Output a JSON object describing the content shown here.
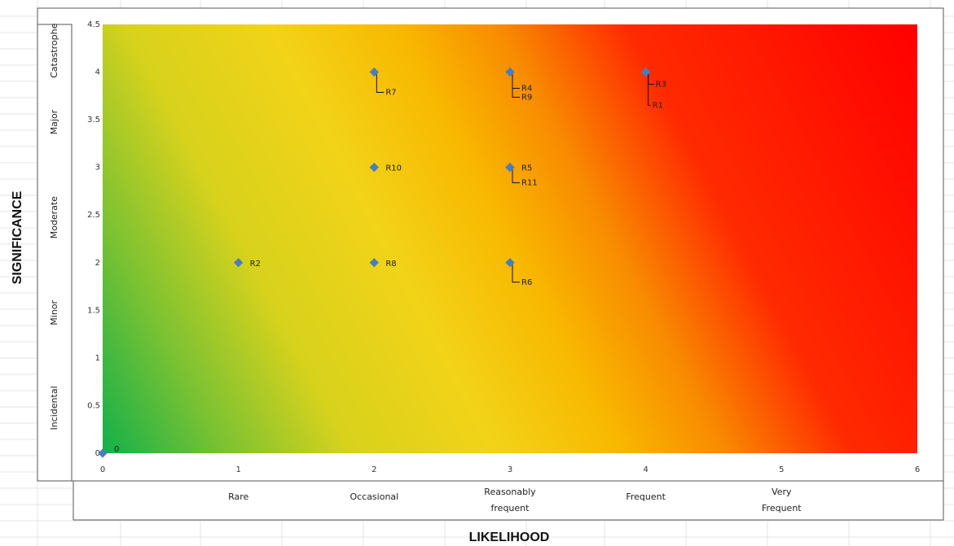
{
  "chart_data": {
    "type": "scatter",
    "xlabel": "LIKELIHOOD",
    "ylabel": "SIGNIFICANCE",
    "xlim": [
      0,
      6
    ],
    "ylim": [
      0,
      4.5
    ],
    "x_ticks": [
      "0",
      "1",
      "2",
      "3",
      "4",
      "5",
      "6"
    ],
    "y_ticks": [
      "0",
      "0.5",
      "1",
      "1.5",
      "2",
      "2.5",
      "3",
      "3.5",
      "4",
      "4.5"
    ],
    "x_categories": [
      "Rare",
      "Occasional",
      "Reasonably frequent",
      "Frequent",
      "Very Frequent"
    ],
    "y_categories": [
      "Incidental",
      "Minor",
      "Moderate",
      "Major",
      "Catastrophe"
    ],
    "points": [
      {
        "label": "R1",
        "x": 4,
        "y": 4
      },
      {
        "label": "R2",
        "x": 1,
        "y": 2
      },
      {
        "label": "R3",
        "x": 4,
        "y": 4
      },
      {
        "label": "R4",
        "x": 3,
        "y": 4
      },
      {
        "label": "R5",
        "x": 3,
        "y": 3
      },
      {
        "label": "R6",
        "x": 3,
        "y": 2
      },
      {
        "label": "R7",
        "x": 2,
        "y": 4
      },
      {
        "label": "R8",
        "x": 2,
        "y": 2
      },
      {
        "label": "R9",
        "x": 3,
        "y": 4
      },
      {
        "label": "R10",
        "x": 2,
        "y": 3
      },
      {
        "label": "R11",
        "x": 3,
        "y": 3
      },
      {
        "label": "0",
        "x": 0,
        "y": 0
      }
    ],
    "grid": false,
    "background": "green-yellow-red heat gradient",
    "colors": {
      "marker": "#4a7ebb",
      "green": "#1db34a",
      "yellow": "#f3d21a",
      "orange": "#f7a300",
      "red": "#ff0000"
    }
  }
}
